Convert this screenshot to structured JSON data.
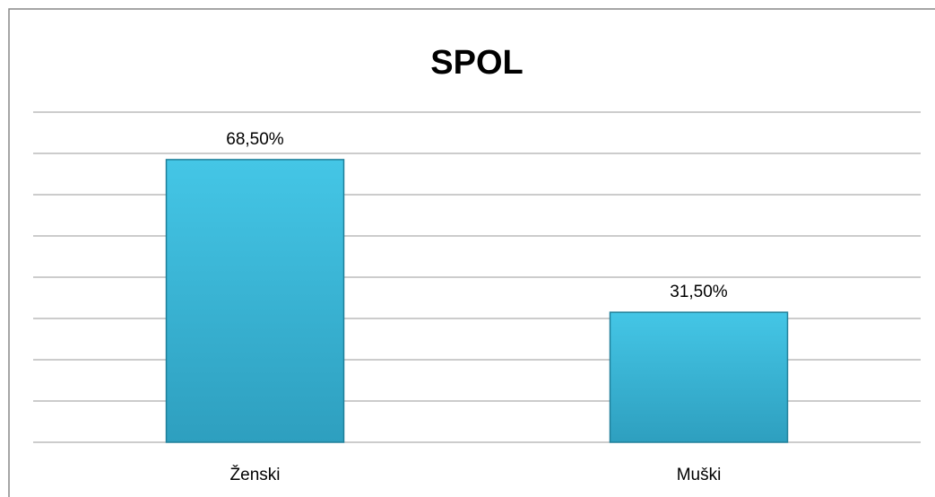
{
  "chart_data": {
    "type": "bar",
    "title": "SPOL",
    "categories": [
      "Ženski",
      "Muški"
    ],
    "values": [
      68.5,
      31.5
    ],
    "value_labels": [
      "68,50%",
      "31,50%"
    ],
    "color": "#38b8d8",
    "ylim": [
      0,
      80
    ],
    "yticks": [
      0,
      10,
      20,
      30,
      40,
      50,
      60,
      70,
      80
    ],
    "grid": true
  }
}
